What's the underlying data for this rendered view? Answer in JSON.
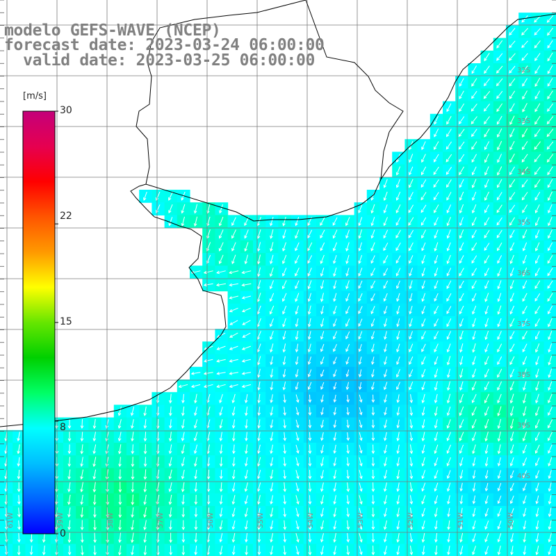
{
  "title": {
    "model": "modelo GEFS-WAVE (NCEP)",
    "forecast": "forecast date: 2023-03-24 06:00:00",
    "valid": "  valid date: 2023-03-25 06:00:00"
  },
  "legend": {
    "unit": "[m/s]",
    "ticks": [
      "30",
      "22",
      "15",
      "8",
      "0"
    ],
    "tick_values": [
      30,
      22,
      15,
      8,
      0
    ],
    "range": [
      0,
      30
    ],
    "colors": [
      "#0000ff",
      "#0066ff",
      "#00bfff",
      "#00ffff",
      "#00ff66",
      "#00d000",
      "#66e600",
      "#ffff00",
      "#ff9900",
      "#ff5500",
      "#ff0000",
      "#e60050",
      "#c4007a"
    ]
  },
  "map": {
    "lon_labels": [
      "61W",
      "59W",
      "58W",
      "57W",
      "56W",
      "55W",
      "54W",
      "53W",
      "52W",
      "51W",
      "50W"
    ],
    "lat_labels": [
      "32S",
      "33S",
      "34S",
      "35S",
      "36S",
      "37S",
      "38S",
      "39S",
      "40S"
    ],
    "grid": true
  }
}
